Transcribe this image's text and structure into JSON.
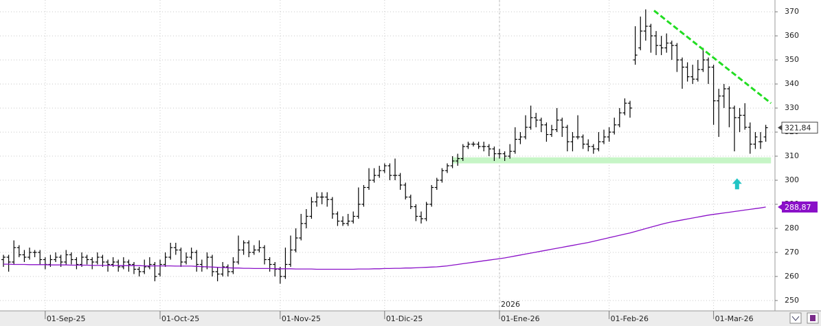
{
  "chart_data": {
    "type": "ohlc",
    "xlim": [
      -0.66,
      147.76
    ],
    "ylim": [
      245.7,
      374.9
    ],
    "yticks": [
      250,
      260,
      270,
      280,
      290,
      300,
      310,
      320,
      330,
      340,
      350,
      360,
      370
    ],
    "xticks": [
      {
        "value": 8,
        "label": "01-Sep-25"
      },
      {
        "value": 30,
        "label": "01-Oct-25"
      },
      {
        "value": 53,
        "label": "01-Nov-25"
      },
      {
        "value": 73,
        "label": "01-Dic-25"
      },
      {
        "value": 95,
        "label": "01-Ene-26"
      },
      {
        "value": 116,
        "label": "01-Feb-26"
      },
      {
        "value": 136,
        "label": "01-Mar-26"
      }
    ],
    "year_marker": {
      "value": 95,
      "label": "2026"
    },
    "grid": true,
    "color": "#000000",
    "ohlc": [
      [
        267,
        269,
        264,
        268
      ],
      [
        268,
        269,
        262,
        266
      ],
      [
        266,
        275,
        265,
        272
      ],
      [
        272,
        273,
        268,
        269
      ],
      [
        269,
        271,
        266,
        268
      ],
      [
        268,
        272,
        267,
        270
      ],
      [
        270,
        271,
        268,
        270
      ],
      [
        270,
        271,
        265,
        267
      ],
      [
        267,
        268,
        263,
        265
      ],
      [
        265,
        269,
        264,
        267
      ],
      [
        267,
        270,
        266,
        268
      ],
      [
        268,
        269,
        264,
        266
      ],
      [
        266,
        271,
        265,
        269
      ],
      [
        269,
        270,
        265,
        267
      ],
      [
        267,
        268,
        263,
        265
      ],
      [
        265,
        270,
        264,
        268
      ],
      [
        268,
        269,
        265,
        267
      ],
      [
        267,
        268,
        263,
        266
      ],
      [
        266,
        270,
        265,
        268
      ],
      [
        268,
        269,
        264,
        266
      ],
      [
        266,
        267,
        262,
        265
      ],
      [
        265,
        268,
        264,
        266
      ],
      [
        266,
        267,
        262,
        264
      ],
      [
        264,
        268,
        263,
        266
      ],
      [
        266,
        267,
        262,
        265
      ],
      [
        265,
        266,
        261,
        263
      ],
      [
        263,
        264,
        260,
        262
      ],
      [
        262,
        267,
        261,
        264
      ],
      [
        264,
        268,
        263,
        265
      ],
      [
        265,
        266,
        258,
        260
      ],
      [
        261,
        267,
        260,
        265
      ],
      [
        265,
        270,
        264,
        268
      ],
      [
        268,
        274,
        267,
        272
      ],
      [
        272,
        274,
        269,
        271
      ],
      [
        271,
        272,
        264,
        266
      ],
      [
        266,
        270,
        265,
        268
      ],
      [
        268,
        272,
        267,
        270
      ],
      [
        270,
        271,
        262,
        265
      ],
      [
        265,
        267,
        262,
        264
      ],
      [
        264,
        270,
        263,
        268
      ],
      [
        268,
        269,
        260,
        262
      ],
      [
        262,
        264,
        258,
        261
      ],
      [
        261,
        266,
        260,
        264
      ],
      [
        264,
        265,
        260,
        262
      ],
      [
        262,
        268,
        261,
        266
      ],
      [
        266,
        277,
        265,
        271
      ],
      [
        271,
        275,
        269,
        274
      ],
      [
        274,
        275,
        268,
        270
      ],
      [
        270,
        273,
        269,
        271
      ],
      [
        271,
        275,
        270,
        272
      ],
      [
        272,
        273,
        265,
        267
      ],
      [
        267,
        268,
        262,
        265
      ],
      [
        265,
        266,
        260,
        263
      ],
      [
        263,
        264,
        257,
        260
      ],
      [
        260,
        272,
        259,
        265
      ],
      [
        265,
        277,
        264,
        271
      ],
      [
        271,
        280,
        270,
        276
      ],
      [
        276,
        286,
        275,
        282
      ],
      [
        282,
        288,
        280,
        285
      ],
      [
        285,
        293,
        284,
        291
      ],
      [
        291,
        295,
        289,
        293
      ],
      [
        293,
        295,
        290,
        293
      ],
      [
        293,
        295,
        289,
        292
      ],
      [
        292,
        293,
        284,
        286
      ],
      [
        286,
        287,
        281,
        283
      ],
      [
        283,
        285,
        281,
        282
      ],
      [
        282,
        286,
        281,
        283
      ],
      [
        283,
        287,
        282,
        285
      ],
      [
        285,
        297,
        284,
        290
      ],
      [
        290,
        298,
        289,
        297
      ],
      [
        297,
        305,
        296,
        300
      ],
      [
        300,
        305,
        299,
        302
      ],
      [
        302,
        306,
        301,
        304
      ],
      [
        304,
        307,
        303,
        306
      ],
      [
        306,
        307,
        300,
        302
      ],
      [
        302,
        309,
        300,
        302
      ],
      [
        302,
        303,
        296,
        298
      ],
      [
        298,
        299,
        292,
        293
      ],
      [
        293,
        294,
        288,
        289
      ],
      [
        289,
        290,
        283,
        285
      ],
      [
        285,
        287,
        282,
        284
      ],
      [
        284,
        291,
        283,
        290
      ],
      [
        290,
        298,
        289,
        297
      ],
      [
        297,
        301,
        296,
        300
      ],
      [
        300,
        305,
        299,
        304
      ],
      [
        304,
        307,
        303,
        306
      ],
      [
        306,
        310,
        305,
        308
      ],
      [
        308,
        311,
        306,
        309
      ],
      [
        309,
        315,
        308,
        314
      ],
      [
        314,
        316,
        313,
        315
      ],
      [
        315,
        316,
        314,
        315
      ],
      [
        315,
        316,
        313,
        314
      ],
      [
        314,
        316,
        312,
        314
      ],
      [
        314,
        315,
        310,
        313
      ],
      [
        313,
        314,
        308,
        311
      ],
      [
        311,
        313,
        309,
        311
      ],
      [
        311,
        312,
        308,
        310
      ],
      [
        310,
        315,
        309,
        312
      ],
      [
        312,
        322,
        311,
        317
      ],
      [
        317,
        320,
        315,
        318
      ],
      [
        318,
        327,
        317,
        322
      ],
      [
        322,
        331,
        321,
        326
      ],
      [
        326,
        328,
        322,
        325
      ],
      [
        325,
        326,
        320,
        323
      ],
      [
        323,
        324,
        316,
        319
      ],
      [
        319,
        323,
        318,
        321
      ],
      [
        321,
        330,
        320,
        325
      ],
      [
        325,
        326,
        318,
        322
      ],
      [
        322,
        323,
        312,
        316
      ],
      [
        316,
        320,
        312,
        318
      ],
      [
        318,
        327,
        317,
        318
      ],
      [
        318,
        319,
        313,
        315
      ],
      [
        315,
        317,
        312,
        314
      ],
      [
        314,
        315,
        311,
        313
      ],
      [
        313,
        320,
        312,
        316
      ],
      [
        316,
        321,
        315,
        318
      ],
      [
        318,
        322,
        316,
        320
      ],
      [
        320,
        326,
        319,
        323
      ],
      [
        323,
        330,
        322,
        328
      ],
      [
        328,
        334,
        327,
        332
      ],
      [
        332,
        333,
        326,
        330
      ],
      [
        350,
        364,
        348,
        352
      ],
      [
        355,
        368,
        354,
        362
      ],
      [
        362,
        371,
        358,
        364
      ],
      [
        364,
        365,
        353,
        360
      ],
      [
        360,
        362,
        352,
        356
      ],
      [
        356,
        360,
        352,
        355
      ],
      [
        355,
        361,
        353,
        357
      ],
      [
        357,
        358,
        350,
        356
      ],
      [
        356,
        357,
        345,
        350
      ],
      [
        350,
        351,
        338,
        347
      ],
      [
        347,
        349,
        341,
        343
      ],
      [
        343,
        348,
        340,
        342
      ],
      [
        342,
        350,
        341,
        346
      ],
      [
        346,
        355,
        345,
        350
      ],
      [
        350,
        351,
        340,
        347
      ],
      [
        347,
        348,
        323,
        333
      ],
      [
        333,
        338,
        318,
        335
      ],
      [
        335,
        340,
        330,
        338
      ],
      [
        338,
        339,
        322,
        330
      ],
      [
        330,
        331,
        312,
        326
      ],
      [
        326,
        330,
        320,
        327
      ],
      [
        327,
        332,
        321,
        322
      ],
      [
        322,
        324,
        311,
        315
      ],
      [
        315,
        320,
        313,
        318
      ],
      [
        316,
        320,
        313,
        316
      ],
      [
        318,
        323,
        316,
        321.84
      ]
    ],
    "last_label": "321,84",
    "ma": {
      "color": "#8a10c8",
      "label": "288,87",
      "values": [
        265.1,
        265.1,
        265.0,
        265.0,
        265.0,
        264.9,
        264.9,
        264.9,
        264.9,
        264.8,
        264.8,
        264.8,
        264.8,
        264.7,
        264.7,
        264.7,
        264.7,
        264.6,
        264.6,
        264.6,
        264.6,
        264.6,
        264.5,
        264.5,
        264.5,
        264.5,
        264.5,
        264.4,
        264.4,
        264.4,
        264.4,
        264.4,
        264.4,
        264.3,
        264.3,
        264.3,
        264.3,
        264.2,
        264.1,
        264.0,
        263.9,
        263.8,
        263.7,
        263.6,
        263.5,
        263.5,
        263.4,
        263.4,
        263.3,
        263.3,
        263.3,
        263.3,
        263.2,
        263.2,
        263.2,
        263.2,
        263.1,
        263.1,
        263.1,
        263.1,
        263.0,
        263.0,
        263.0,
        263.0,
        263.0,
        263.0,
        263.0,
        263.0,
        263.1,
        263.1,
        263.1,
        263.2,
        263.2,
        263.3,
        263.3,
        263.4,
        263.4,
        263.5,
        263.5,
        263.6,
        263.7,
        263.8,
        263.9,
        264.0,
        264.2,
        264.4,
        264.7,
        265.0,
        265.3,
        265.6,
        265.9,
        266.2,
        266.5,
        266.8,
        267.1,
        267.4,
        267.7,
        268.1,
        268.5,
        268.9,
        269.3,
        269.7,
        270.1,
        270.5,
        270.9,
        271.3,
        271.7,
        272.1,
        272.5,
        272.9,
        273.3,
        273.7,
        274.1,
        274.6,
        275.1,
        275.6,
        276.1,
        276.6,
        277.1,
        277.6,
        278.1,
        278.7,
        279.3,
        279.9,
        280.5,
        281.1,
        281.7,
        282.2,
        282.7,
        283.1,
        283.5,
        283.9,
        284.3,
        284.7,
        285.1,
        285.5,
        285.8,
        286.1,
        286.4,
        286.7,
        287.0,
        287.3,
        287.6,
        287.9,
        288.2,
        288.5,
        288.87
      ]
    },
    "trendline": {
      "color": "#22dd22",
      "x": [
        124.6,
        147
      ],
      "y": [
        370.5,
        332
      ]
    },
    "support_zone": {
      "color": "#c6f5c6",
      "x": [
        86,
        147
      ],
      "y": [
        307,
        309.5
      ]
    },
    "arrow": {
      "color": "#22c4c4",
      "x": 140.5,
      "y": 298.5
    }
  }
}
